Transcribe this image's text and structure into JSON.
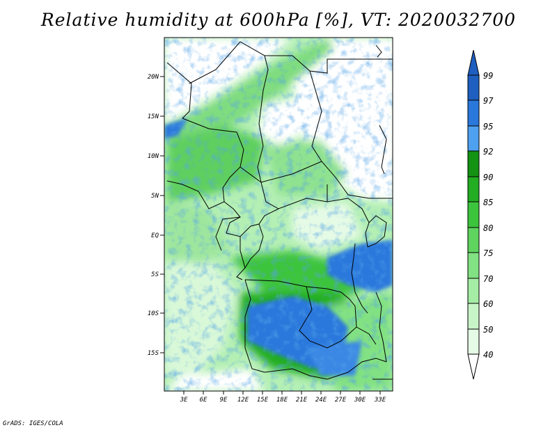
{
  "title": "Relative humidity at 600hPa [%], VT: 2020032700",
  "credit": "GrADS: IGES/COLA",
  "map": {
    "lat_labels": [
      "20N",
      "15N",
      "10N",
      "5N",
      "EQ",
      "5S",
      "10S",
      "15S"
    ],
    "lon_labels": [
      "3E",
      "6E",
      "9E",
      "12E",
      "15E",
      "18E",
      "21E",
      "24E",
      "27E",
      "30E",
      "33E"
    ]
  },
  "colorbar": {
    "levels": [
      "40",
      "50",
      "60",
      "70",
      "75",
      "80",
      "85",
      "90",
      "92",
      "95",
      "97",
      "99"
    ],
    "colors": [
      "#ffffff",
      "#e6fbe6",
      "#c8f5c8",
      "#a5eda5",
      "#82e182",
      "#5fd45f",
      "#3cc43c",
      "#22ad22",
      "#139213",
      "#4ea0f0",
      "#2a78dc",
      "#1f5fc0"
    ]
  }
}
